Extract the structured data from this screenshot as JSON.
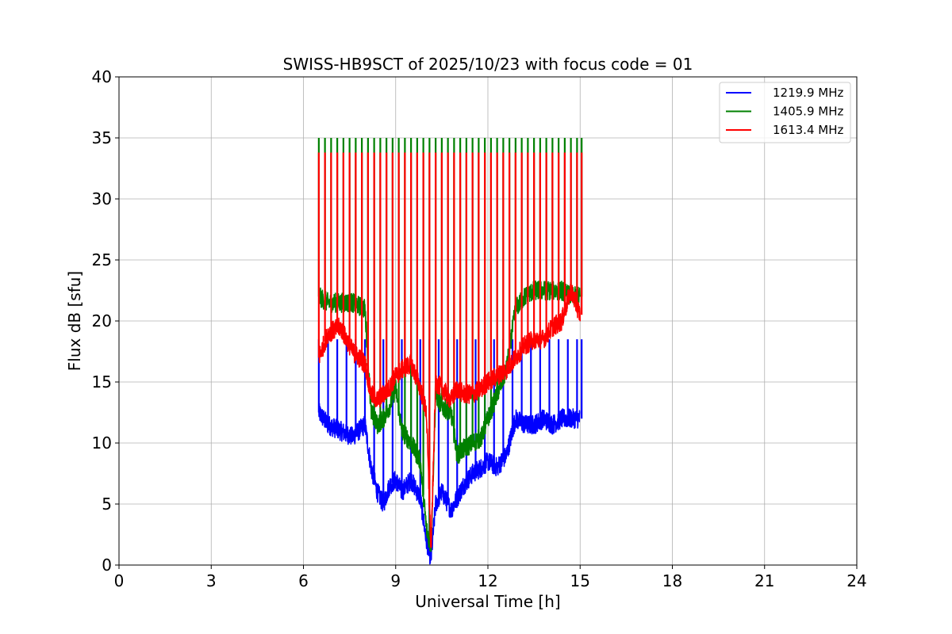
{
  "chart_data": {
    "type": "line",
    "title": "SWISS-HB9SCT of 2025/10/23 with focus code = 01",
    "xlabel": "Universal Time [h]",
    "ylabel": "Flux dB [sfu]",
    "xlim": [
      0,
      24
    ],
    "ylim": [
      0,
      40
    ],
    "xticks": [
      0,
      3,
      6,
      9,
      12,
      15,
      18,
      21,
      24
    ],
    "yticks": [
      0,
      5,
      10,
      15,
      20,
      25,
      30,
      35,
      40
    ],
    "grid": true,
    "legend_position": "top-right",
    "series": [
      {
        "name": "1219.9 MHz",
        "color": "#0000ff",
        "x": [
          6.5,
          6.8,
          7.2,
          7.6,
          8.0,
          8.2,
          8.4,
          8.6,
          8.8,
          9.0,
          9.2,
          9.5,
          9.8,
          10.0,
          10.15,
          10.3,
          10.5,
          10.8,
          11.0,
          11.2,
          11.5,
          11.8,
          12.0,
          12.3,
          12.6,
          12.9,
          13.2,
          13.5,
          13.8,
          14.1,
          14.4,
          14.7,
          15.0
        ],
        "y": [
          12.5,
          11.5,
          11.0,
          10.5,
          11.5,
          8.0,
          6.0,
          5.0,
          6.5,
          7.0,
          6.0,
          7.0,
          5.5,
          2.0,
          0.5,
          5.0,
          6.0,
          4.5,
          5.5,
          6.5,
          7.5,
          8.0,
          8.5,
          8.0,
          9.0,
          12.0,
          11.5,
          11.5,
          12.0,
          11.5,
          12.0,
          12.0,
          12.0
        ],
        "spikes_x": [
          6.5,
          6.8,
          7.1,
          7.4,
          7.7,
          8.0,
          8.3,
          8.6,
          8.9,
          9.2,
          9.5,
          9.8,
          10.1,
          10.4,
          10.7,
          11.0,
          11.3,
          11.6,
          11.9,
          12.2,
          12.5,
          12.8,
          13.1,
          13.4,
          13.7,
          14.0,
          14.3,
          14.6,
          14.9,
          15.05
        ],
        "spike_peak": 18.5
      },
      {
        "name": "1405.9 MHz",
        "color": "#008000",
        "x": [
          6.5,
          6.8,
          7.2,
          7.6,
          8.0,
          8.2,
          8.4,
          8.6,
          8.8,
          9.0,
          9.2,
          9.5,
          9.8,
          10.0,
          10.15,
          10.3,
          10.5,
          10.8,
          11.0,
          11.2,
          11.5,
          11.8,
          12.0,
          12.3,
          12.6,
          12.9,
          13.2,
          13.5,
          13.8,
          14.1,
          14.4,
          14.7,
          15.0
        ],
        "y": [
          22.0,
          21.5,
          21.5,
          21.5,
          21.0,
          12.5,
          11.5,
          12.0,
          13.0,
          14.5,
          11.0,
          10.0,
          8.5,
          3.0,
          1.5,
          14.0,
          13.0,
          12.5,
          9.0,
          9.5,
          10.0,
          10.5,
          12.0,
          14.0,
          16.0,
          21.0,
          22.0,
          22.5,
          22.5,
          22.5,
          22.5,
          22.0,
          22.0
        ],
        "spikes_x": [
          6.5,
          6.7,
          6.9,
          7.1,
          7.3,
          7.5,
          7.7,
          7.9,
          8.1,
          8.3,
          8.5,
          8.7,
          8.9,
          9.1,
          9.3,
          9.5,
          9.7,
          9.9,
          10.1,
          10.3,
          10.5,
          10.7,
          10.9,
          11.1,
          11.3,
          11.5,
          11.7,
          11.9,
          12.1,
          12.3,
          12.5,
          12.7,
          12.9,
          13.1,
          13.3,
          13.5,
          13.7,
          13.9,
          14.1,
          14.3,
          14.5,
          14.7,
          14.9,
          15.05
        ],
        "spike_peak": 35.0
      },
      {
        "name": "1613.4 MHz",
        "color": "#ff0000",
        "x": [
          6.5,
          6.8,
          7.2,
          7.6,
          8.0,
          8.2,
          8.4,
          8.6,
          8.8,
          9.0,
          9.2,
          9.5,
          9.8,
          10.0,
          10.15,
          10.3,
          10.5,
          10.8,
          11.0,
          11.2,
          11.5,
          11.8,
          12.0,
          12.3,
          12.6,
          12.9,
          13.2,
          13.5,
          13.8,
          14.1,
          14.4,
          14.7,
          15.0
        ],
        "y": [
          17.0,
          19.0,
          19.5,
          17.5,
          16.5,
          14.0,
          13.5,
          14.0,
          14.5,
          15.5,
          16.0,
          16.5,
          14.5,
          12.5,
          1.0,
          15.0,
          14.5,
          13.5,
          14.5,
          14.0,
          14.0,
          14.5,
          15.0,
          15.5,
          16.0,
          17.0,
          18.0,
          18.5,
          18.5,
          19.5,
          20.0,
          22.5,
          20.5
        ],
        "spikes_x": [
          6.5,
          6.7,
          6.9,
          7.1,
          7.3,
          7.5,
          7.7,
          7.9,
          8.1,
          8.3,
          8.5,
          8.7,
          8.9,
          9.1,
          9.3,
          9.5,
          9.7,
          9.9,
          10.1,
          10.3,
          10.5,
          10.7,
          10.9,
          11.1,
          11.3,
          11.5,
          11.7,
          11.9,
          12.1,
          12.3,
          12.5,
          12.7,
          12.9,
          13.1,
          13.3,
          13.5,
          13.7,
          13.9,
          14.1,
          14.3,
          14.5,
          14.7,
          14.9,
          15.05
        ],
        "spike_peak": 33.8
      }
    ]
  }
}
